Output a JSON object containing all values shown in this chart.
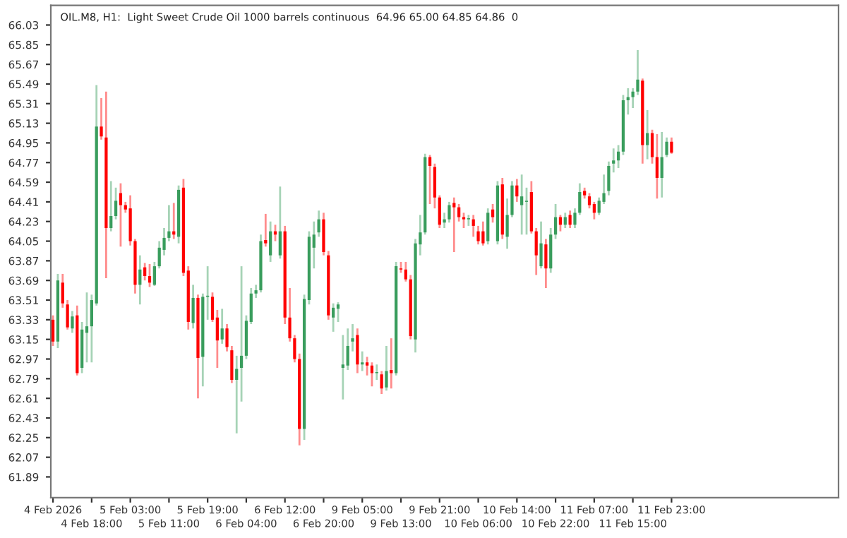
{
  "chart_data": {
    "type": "candlestick",
    "title": "OIL.M8, H1:  Light Sweet Crude Oil 1000 barrels continuous  64.96 65.00 64.85 64.86  0",
    "colors": [
      "#ff0000",
      "#3a9d5d",
      "#ff0000",
      "#ff0000",
      "#3a9d5d",
      "#ff0000",
      "#3a9d5d",
      "#3a9d5d",
      "#3a9d5d",
      "#3a9d5d",
      "#ff0000",
      "#ff0000",
      "#3a9d5d",
      "#3a9d5d",
      "#ff0000",
      "#ff0000",
      "#ff0000",
      "#ff0000",
      "#3a9d5d",
      "#ff0000",
      "#ff0000",
      "#3a9d5d",
      "#3a9d5d",
      "#3a9d5d",
      "#3a9d5d",
      "#ff0000",
      "#3a9d5d",
      "#ff0000",
      "#ff0000",
      "#3a9d5d",
      "#ff0000",
      "#3a9d5d",
      "#3a9d5d",
      "#ff0000",
      "#ff0000",
      "#3a9d5d",
      "#ff0000",
      "#ff0000",
      "#3a9d5d",
      "#3a9d5d",
      "#3a9d5d",
      "#3a9d5d",
      "#3a9d5d",
      "#3a9d5d",
      "#ff0000",
      "#3a9d5d",
      "#ff0000",
      "#3a9d5d",
      "#ff0000",
      "#ff0000",
      "#ff0000",
      "#ff0000",
      "#3a9d5d",
      "#3a9d5d",
      "#3a9d5d",
      "#3a9d5d",
      "#ff0000",
      "#ff0000",
      "#3a9d5d",
      "#3a9d5d",
      "#3a9d5d",
      "#3a9d5d",
      "#3a9d5d",
      "#ff0000",
      "#3a9d5d",
      "#ff0000",
      "#ff0000",
      "#3a9d5d",
      "#ff0000",
      "#3a9d5d",
      "#ff0000",
      "#3a9d5d",
      "#ff0000",
      "#ff0000",
      "#ff0000",
      "#3a9d5d",
      "#3a9d5d",
      "#3a9d5d",
      "#ff0000",
      "#ff0000",
      "#ff0000",
      "#3a9d5d",
      "#3a9d5d",
      "#ff0000",
      "#ff0000",
      "#ff0000",
      "#3a9d5d",
      "#ff0000",
      "#ff0000",
      "#ff0000",
      "#3a9d5d",
      "#ff0000",
      "#3a9d5d",
      "#ff0000",
      "#3a9d5d",
      "#3a9d5d",
      "#ff0000",
      "#3a9d5d",
      "#3a9d5d",
      "#ff0000",
      "#ff0000",
      "#3a9d5d",
      "#ff0000",
      "#3a9d5d",
      "#3a9d5d",
      "#ff0000",
      "#3a9d5d",
      "#ff0000",
      "#3a9d5d",
      "#3a9d5d",
      "#ff0000",
      "#ff0000",
      "#ff0000",
      "#3a9d5d",
      "#3a9d5d",
      "#3a9d5d",
      "#3a9d5d",
      "#3a9d5d",
      "#3a9d5d",
      "#3a9d5d",
      "#3a9d5d",
      "#3a9d5d",
      "#ff0000",
      "#3a9d5d",
      "#ff0000",
      "#ff0000",
      "#3a9d5d",
      "#3a9d5d",
      "#ff0000"
    ],
    "categories": [
      "4 Feb 2026",
      null,
      null,
      null,
      null,
      null,
      null,
      null,
      "4 Feb 18:00",
      null,
      null,
      null,
      null,
      null,
      null,
      null,
      "5 Feb 03:00",
      null,
      null,
      null,
      null,
      null,
      null,
      null,
      "5 Feb 11:00",
      null,
      null,
      null,
      null,
      null,
      null,
      null,
      "5 Feb 19:00",
      null,
      null,
      null,
      null,
      null,
      null,
      null,
      "6 Feb 04:00",
      null,
      null,
      null,
      null,
      null,
      null,
      null,
      "6 Feb 12:00",
      null,
      null,
      null,
      null,
      null,
      null,
      null,
      "6 Feb 20:00",
      null,
      null,
      null,
      null,
      null,
      null,
      null,
      "9 Feb 05:00",
      null,
      null,
      null,
      null,
      null,
      null,
      null,
      "9 Feb 13:00",
      null,
      null,
      null,
      null,
      null,
      null,
      null,
      "9 Feb 21:00",
      null,
      null,
      null,
      null,
      null,
      null,
      null,
      "10 Feb 06:00",
      null,
      null,
      null,
      null,
      null,
      null,
      null,
      "10 Feb 14:00",
      null,
      null,
      null,
      null,
      null,
      null,
      null,
      "10 Feb 22:00",
      null,
      null,
      null,
      null,
      null,
      null,
      null,
      "11 Feb 07:00",
      null,
      null,
      null,
      null,
      null,
      null,
      null,
      "11 Feb 15:00",
      null,
      null,
      null,
      null,
      null,
      null,
      null,
      "11 Feb 23:00"
    ],
    "ohlc": [
      [
        63.33,
        63.37,
        63.09,
        63.13
      ],
      [
        63.13,
        63.75,
        63.07,
        63.69
      ],
      [
        63.67,
        63.75,
        63.44,
        63.48
      ],
      [
        63.47,
        63.51,
        63.24,
        63.26
      ],
      [
        63.25,
        63.41,
        63.21,
        63.36
      ],
      [
        63.37,
        63.46,
        62.82,
        62.84
      ],
      [
        62.89,
        63.31,
        62.84,
        63.24
      ],
      [
        63.21,
        63.58,
        62.94,
        63.27
      ],
      [
        63.27,
        63.56,
        62.94,
        63.51
      ],
      [
        63.48,
        65.48,
        63.46,
        65.1
      ],
      [
        65.1,
        65.36,
        64.98,
        65.01
      ],
      [
        65.0,
        65.42,
        63.71,
        64.17
      ],
      [
        64.17,
        64.6,
        64.14,
        64.28
      ],
      [
        64.28,
        64.54,
        64.25,
        64.42
      ],
      [
        64.49,
        64.58,
        64.0,
        64.38
      ],
      [
        64.38,
        64.41,
        64.31,
        64.34
      ],
      [
        64.35,
        64.47,
        64.01,
        64.05
      ],
      [
        64.05,
        64.07,
        63.57,
        63.65
      ],
      [
        63.65,
        63.92,
        63.47,
        63.79
      ],
      [
        63.81,
        63.85,
        63.69,
        63.73
      ],
      [
        63.73,
        63.84,
        63.63,
        63.67
      ],
      [
        63.65,
        63.86,
        63.64,
        63.82
      ],
      [
        63.82,
        64.05,
        63.8,
        63.99
      ],
      [
        63.97,
        64.17,
        63.92,
        64.08
      ],
      [
        64.08,
        64.38,
        64.05,
        64.14
      ],
      [
        64.14,
        64.4,
        64.07,
        64.11
      ],
      [
        64.09,
        64.56,
        64.03,
        64.52
      ],
      [
        64.54,
        64.62,
        63.73,
        63.76
      ],
      [
        63.78,
        63.82,
        63.24,
        63.31
      ],
      [
        63.3,
        63.65,
        63.25,
        63.53
      ],
      [
        63.53,
        63.56,
        62.61,
        62.98
      ],
      [
        62.99,
        63.57,
        62.72,
        63.54
      ],
      [
        63.54,
        63.82,
        63.33,
        63.55
      ],
      [
        63.54,
        63.58,
        63.31,
        63.33
      ],
      [
        63.35,
        63.42,
        62.89,
        63.14
      ],
      [
        63.15,
        63.43,
        63.11,
        63.25
      ],
      [
        63.25,
        63.29,
        63.04,
        63.08
      ],
      [
        63.05,
        63.09,
        62.75,
        62.78
      ],
      [
        62.78,
        63.0,
        62.29,
        62.88
      ],
      [
        62.89,
        63.82,
        62.58,
        63.0
      ],
      [
        63.0,
        63.37,
        62.97,
        63.32
      ],
      [
        63.31,
        63.62,
        63.29,
        63.57
      ],
      [
        63.57,
        63.65,
        63.53,
        63.6
      ],
      [
        63.6,
        64.11,
        63.58,
        64.05
      ],
      [
        64.06,
        64.3,
        64.0,
        64.03
      ],
      [
        63.92,
        64.23,
        63.86,
        64.14
      ],
      [
        64.14,
        64.2,
        64.05,
        64.11
      ],
      [
        63.92,
        64.55,
        63.89,
        64.14
      ],
      [
        64.14,
        64.19,
        63.29,
        63.35
      ],
      [
        63.35,
        63.62,
        63.13,
        63.16
      ],
      [
        63.16,
        63.19,
        62.94,
        62.97
      ],
      [
        62.97,
        63.02,
        62.18,
        62.33
      ],
      [
        62.33,
        63.56,
        62.23,
        63.52
      ],
      [
        63.51,
        64.14,
        63.47,
        64.09
      ],
      [
        63.99,
        64.23,
        63.8,
        64.11
      ],
      [
        64.13,
        64.33,
        64.09,
        64.25
      ],
      [
        64.25,
        64.31,
        63.92,
        63.95
      ],
      [
        63.92,
        63.96,
        63.33,
        63.37
      ],
      [
        63.35,
        63.48,
        63.22,
        63.44
      ],
      [
        63.43,
        63.49,
        63.31,
        63.47
      ],
      [
        62.89,
        63.19,
        62.6,
        62.92
      ],
      [
        62.91,
        63.25,
        62.87,
        63.09
      ],
      [
        63.13,
        63.29,
        63.04,
        63.16
      ],
      [
        63.19,
        63.25,
        62.84,
        62.92
      ],
      [
        62.92,
        63.04,
        62.86,
        62.94
      ],
      [
        62.94,
        62.99,
        62.82,
        62.91
      ],
      [
        62.91,
        62.94,
        62.72,
        62.84
      ],
      [
        62.84,
        62.92,
        62.78,
        62.85
      ],
      [
        62.83,
        62.86,
        62.65,
        62.7
      ],
      [
        62.71,
        63.09,
        62.68,
        62.86
      ],
      [
        62.87,
        63.16,
        62.7,
        62.84
      ],
      [
        62.84,
        63.86,
        62.82,
        63.82
      ],
      [
        63.8,
        63.86,
        63.76,
        63.79
      ],
      [
        63.79,
        63.86,
        63.68,
        63.7
      ],
      [
        63.7,
        63.74,
        63.15,
        63.18
      ],
      [
        63.15,
        64.07,
        63.03,
        64.03
      ],
      [
        64.02,
        64.29,
        63.92,
        64.13
      ],
      [
        64.13,
        64.85,
        64.11,
        64.82
      ],
      [
        64.82,
        64.84,
        64.39,
        64.74
      ],
      [
        64.73,
        64.76,
        64.35,
        64.45
      ],
      [
        64.45,
        64.47,
        64.17,
        64.2
      ],
      [
        64.22,
        64.31,
        64.17,
        64.25
      ],
      [
        64.25,
        64.41,
        64.22,
        64.38
      ],
      [
        64.4,
        64.45,
        63.95,
        64.36
      ],
      [
        64.36,
        64.39,
        64.23,
        64.27
      ],
      [
        64.27,
        64.31,
        64.17,
        64.25
      ],
      [
        64.25,
        64.29,
        64.19,
        64.26
      ],
      [
        64.25,
        64.29,
        64.09,
        64.19
      ],
      [
        64.14,
        64.19,
        64.02,
        64.05
      ],
      [
        64.14,
        64.23,
        64.01,
        64.03
      ],
      [
        64.05,
        64.35,
        64.02,
        64.31
      ],
      [
        64.34,
        64.39,
        64.22,
        64.27
      ],
      [
        64.05,
        64.6,
        64.02,
        64.56
      ],
      [
        64.57,
        64.63,
        64.07,
        64.11
      ],
      [
        64.09,
        64.44,
        63.98,
        64.29
      ],
      [
        64.29,
        64.6,
        64.27,
        64.56
      ],
      [
        64.56,
        64.62,
        64.41,
        64.46
      ],
      [
        64.38,
        64.66,
        64.11,
        64.46
      ],
      [
        64.41,
        64.54,
        64.11,
        64.42
      ],
      [
        64.5,
        64.6,
        64.12,
        64.14
      ],
      [
        64.14,
        64.17,
        63.74,
        63.92
      ],
      [
        63.82,
        64.23,
        63.8,
        64.03
      ],
      [
        64.02,
        64.07,
        63.62,
        63.8
      ],
      [
        63.8,
        64.17,
        63.76,
        64.11
      ],
      [
        64.11,
        64.39,
        64.07,
        64.27
      ],
      [
        64.27,
        64.29,
        64.14,
        64.2
      ],
      [
        64.2,
        64.31,
        64.17,
        64.27
      ],
      [
        64.29,
        64.33,
        64.17,
        64.2
      ],
      [
        64.2,
        64.35,
        64.17,
        64.31
      ],
      [
        64.31,
        64.58,
        64.29,
        64.5
      ],
      [
        64.51,
        64.54,
        64.44,
        64.47
      ],
      [
        64.46,
        64.49,
        64.35,
        64.38
      ],
      [
        64.39,
        64.41,
        64.25,
        64.31
      ],
      [
        64.31,
        64.45,
        64.29,
        64.42
      ],
      [
        64.41,
        64.66,
        64.39,
        64.49
      ],
      [
        64.51,
        64.78,
        64.47,
        64.74
      ],
      [
        64.76,
        64.9,
        64.68,
        64.79
      ],
      [
        64.79,
        64.93,
        64.72,
        64.87
      ],
      [
        64.87,
        65.39,
        64.84,
        65.34
      ],
      [
        65.34,
        65.45,
        65.21,
        65.37
      ],
      [
        65.37,
        65.45,
        65.27,
        65.42
      ],
      [
        65.42,
        65.8,
        65.39,
        65.53
      ],
      [
        65.52,
        65.54,
        64.76,
        64.93
      ],
      [
        64.93,
        65.25,
        64.8,
        65.04
      ],
      [
        65.04,
        65.07,
        64.76,
        64.82
      ],
      [
        64.82,
        65.03,
        64.44,
        64.63
      ],
      [
        64.63,
        65.05,
        64.45,
        64.82
      ],
      [
        64.84,
        65.0,
        64.82,
        64.96
      ],
      [
        64.96,
        65.0,
        64.85,
        64.86
      ]
    ],
    "ylim": [
      61.7,
      66.21
    ],
    "yticks": [
      61.89,
      62.07,
      62.25,
      62.43,
      62.61,
      62.79,
      62.97,
      63.15,
      63.33,
      63.51,
      63.69,
      63.87,
      64.05,
      64.23,
      64.41,
      64.59,
      64.77,
      64.95,
      65.13,
      65.31,
      65.49,
      65.67,
      65.85,
      66.03
    ]
  }
}
